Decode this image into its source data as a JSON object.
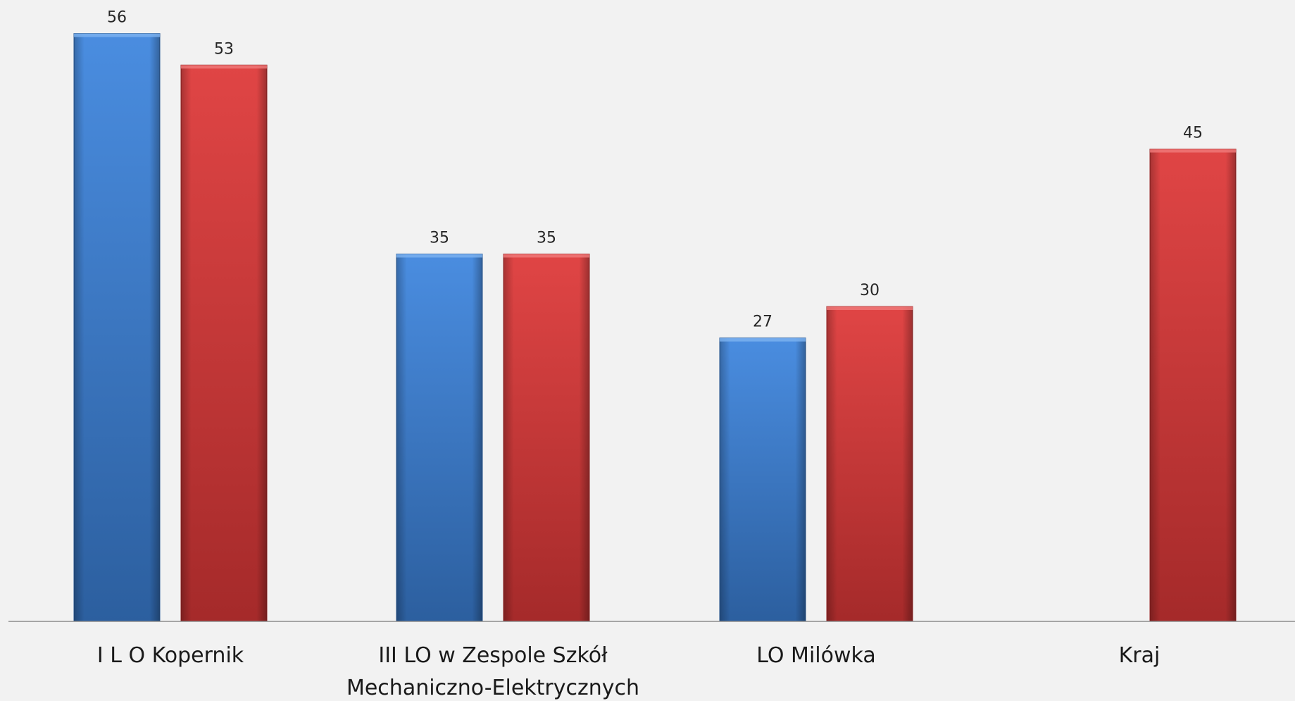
{
  "chart_data": {
    "type": "bar",
    "categories": [
      [
        "I L O Kopernik"
      ],
      [
        "III LO w Zespole Szkół",
        "Mechaniczno-Elektrycznych"
      ],
      [
        "LO Milówka"
      ],
      [
        "Kraj"
      ]
    ],
    "series": [
      {
        "color": "#3b78c8",
        "values": [
          56,
          35,
          27,
          null
        ]
      },
      {
        "color": "#d23c3c",
        "values": [
          53,
          35,
          30,
          45
        ]
      }
    ],
    "ylim": [
      0,
      60
    ],
    "grid": false,
    "legend": "none"
  }
}
